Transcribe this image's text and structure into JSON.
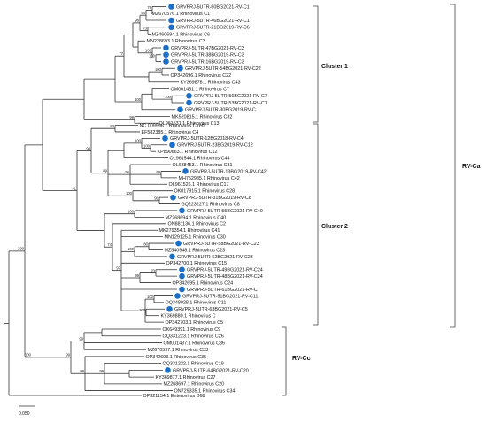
{
  "marker_color": "#1a6fc9",
  "marker_icon": "circle-marker",
  "groups": {
    "cluster1": "Cluster 1",
    "cluster2": "Cluster 2",
    "rv_ca": "RV-Ca",
    "rv_cc": "RV-Cc"
  },
  "scale_bar": "0.050",
  "leaves": [
    {
      "label": "GRVPRJ-5UTR-60BG2021-RV-C1",
      "marked": true
    },
    {
      "label": "MZ670576.1 Rhinovirus C1",
      "marked": false
    },
    {
      "label": "GRVPRJ-5UTR-46BG2021-RV-C1",
      "marked": true
    },
    {
      "label": "GRVPRJ-5UTR-21BG2019-RV-C6",
      "marked": true
    },
    {
      "label": "MZ460694.1 Rhinovirus C6",
      "marked": false
    },
    {
      "label": "MN228693.1 Rhinovirus C3",
      "marked": false
    },
    {
      "label": "GRVPRJ-5UTR-47BG2021-RV-C3",
      "marked": true
    },
    {
      "label": "GRVPRJ-5UTR-38BG2019-RV-C3",
      "marked": true
    },
    {
      "label": "GRVPRJ-5UTR-16BG2019-RV-C3",
      "marked": true
    },
    {
      "label": "GRVPRJ-5UTR-54BG2021-RV-C22",
      "marked": true
    },
    {
      "label": "OP342696.1 Rhinovirus C22",
      "marked": false
    },
    {
      "label": "KY369878.1 Rhinovirus C43",
      "marked": false
    },
    {
      "label": "OM001451.1 Rhinovirus C7",
      "marked": false
    },
    {
      "label": "GRVPRJ-5UTR-56BG2021-RV-C7",
      "marked": true
    },
    {
      "label": "GRVPRJ-5UTR-53BG2021-RV-C7",
      "marked": true
    },
    {
      "label": "GRVPRJ-5UTR-30BG2019-RV-C",
      "marked": true
    },
    {
      "label": "MK520815.1 Rhinovirus C32",
      "marked": false
    },
    {
      "label": "OL961531.1 Rhinovirus C13",
      "marked": false
    },
    {
      "label": "NC 009996.1 Rhinovirus C reff",
      "marked": false
    },
    {
      "label": "EF582385.1 Rhinovirus C4",
      "marked": false
    },
    {
      "label": "GRVPRJ-5UTR-12BG2018-RV-C4",
      "marked": true
    },
    {
      "label": "GRVPRJ-5UTR-23BG2019-RV-C12",
      "marked": true
    },
    {
      "label": "KP890663.1 Rhinovirus C12",
      "marked": false
    },
    {
      "label": "OL961544.1 Rhinovirus C44",
      "marked": false
    },
    {
      "label": "OL638453.1 Rhinovirus C31",
      "marked": false
    },
    {
      "label": "GRVPRJ-5UTR-13BG2019-RV-C42",
      "marked": true
    },
    {
      "label": "MH752985.1 Rhinovirus C42",
      "marked": false
    },
    {
      "label": "OL961526.1 Rhinovirus C17",
      "marked": false
    },
    {
      "label": "OK017915.1 Rhinovirus C28",
      "marked": false
    },
    {
      "label": "GRVPRJ-5UTR-31BG2019-RV-C8",
      "marked": true
    },
    {
      "label": "GQ223227.1 Rhinovirus C8",
      "marked": false
    },
    {
      "label": "GRVPRJ-5UTR-55BG2021-RV-C40",
      "marked": true
    },
    {
      "label": "MZ268694.1 Rhinovirus C40",
      "marked": false
    },
    {
      "label": "ON881136.1 Rhinovirus C2",
      "marked": false
    },
    {
      "label": "MK279354.1 Rhinovirus C41",
      "marked": false
    },
    {
      "label": "MN129125.1 Rhinovirus C30",
      "marked": false
    },
    {
      "label": "GRVPRJ-5UTR-58BG2021-RV-C23",
      "marked": true
    },
    {
      "label": "MZ540948.1 Rhinovirus C23",
      "marked": false
    },
    {
      "label": "GRVPRJ-5UTR-52BG2021-RV-C23",
      "marked": true
    },
    {
      "label": "OP342700.1 Rhinovirus C15",
      "marked": false
    },
    {
      "label": "GRVPRJ-5UTR-49BG2021-RV-C24",
      "marked": true
    },
    {
      "label": "GRVPRJ-5UTR-48BG2021-RV-C24",
      "marked": true
    },
    {
      "label": "OP342695.1 Rhinovirus C24",
      "marked": false
    },
    {
      "label": "GRVPRJ-5UTR-61BG2021-RV-C",
      "marked": true
    },
    {
      "label": "GRVPRJ-5UTR-51BG2021-RV-C11",
      "marked": true
    },
    {
      "label": "OQ348028.1 Rhinovirus C11",
      "marked": false
    },
    {
      "label": "GRVPRJ-5UTR-63BG2021-RV-C5",
      "marked": true
    },
    {
      "label": "KY369880.1 Rhinovirus C",
      "marked": false
    },
    {
      "label": "OP342703.1 Rhinovirus C5",
      "marked": false
    },
    {
      "label": "OK649391.1 Rhinovirus C9",
      "marked": false
    },
    {
      "label": "OQ331223.1 Rhinovirus C26",
      "marked": false
    },
    {
      "label": "OM001437.1 Rhinovirus C36",
      "marked": false
    },
    {
      "label": "MZ670597.1 Rhinovirus C33",
      "marked": false
    },
    {
      "label": "OP342693.1 Rhinovirus C35",
      "marked": false
    },
    {
      "label": "OQ331222.1 Rhinovirus C19",
      "marked": false
    },
    {
      "label": "GRVPRJ-5UTR-64BG2021-RV-C20",
      "marked": true
    },
    {
      "label": "KY369877.1 Rhinovirus C27",
      "marked": false
    },
    {
      "label": "MZ268697.1 Rhinovirus C20",
      "marked": false
    },
    {
      "label": "ON729335.1 Rhinovirus C34",
      "marked": false
    },
    {
      "label": "OP321154.1 Enterovirus D68",
      "marked": false
    }
  ],
  "bootstrap": [
    "76",
    "94",
    "98",
    "73",
    "100",
    "100",
    "100",
    "77",
    "99",
    "100",
    "100",
    "91",
    "100",
    "100",
    "93",
    "99",
    "96",
    "100",
    "98",
    "90",
    "89",
    "98",
    "100",
    "97",
    "74",
    "100",
    "80",
    "100",
    "70",
    "99",
    "100",
    "100",
    "79",
    "83",
    "99",
    "99",
    "99",
    "99",
    "99",
    "100",
    "100"
  ]
}
